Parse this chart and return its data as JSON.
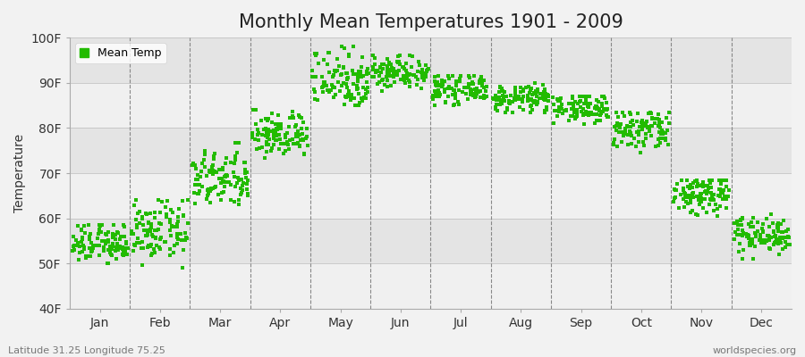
{
  "title": "Monthly Mean Temperatures 1901 - 2009",
  "ylabel": "Temperature",
  "xlabel_bottom_left": "Latitude 31.25 Longitude 75.25",
  "xlabel_bottom_right": "worldspecies.org",
  "legend_label": "Mean Temp",
  "dot_color": "#22bb00",
  "background_color": "#f2f2f2",
  "plot_bg_bands": [
    "#f0f0f0",
    "#e4e4e4"
  ],
  "ylim": [
    40,
    100
  ],
  "yticks": [
    40,
    50,
    60,
    70,
    80,
    90,
    100
  ],
  "ytick_labels": [
    "40F",
    "50F",
    "60F",
    "70F",
    "80F",
    "90F",
    "100F"
  ],
  "months": [
    "Jan",
    "Feb",
    "Mar",
    "Apr",
    "May",
    "Jun",
    "Jul",
    "Aug",
    "Sep",
    "Oct",
    "Nov",
    "Dec"
  ],
  "n_years": 109,
  "title_fontsize": 15,
  "axis_label_fontsize": 10,
  "tick_fontsize": 10,
  "month_mean_F": [
    54.5,
    57.0,
    68.5,
    78.5,
    91.0,
    92.5,
    88.5,
    86.5,
    84.5,
    79.5,
    65.5,
    56.5
  ],
  "month_std_F": [
    2.2,
    3.2,
    3.2,
    2.5,
    3.5,
    1.8,
    1.5,
    1.5,
    1.5,
    2.5,
    2.5,
    2.0
  ],
  "month_min_F": [
    50.0,
    48.5,
    63.0,
    73.0,
    85.0,
    88.0,
    85.0,
    83.5,
    80.5,
    74.5,
    60.5,
    51.0
  ],
  "month_max_F": [
    58.5,
    64.0,
    81.5,
    84.0,
    98.0,
    96.0,
    91.5,
    90.0,
    87.0,
    83.5,
    68.5,
    61.5
  ]
}
